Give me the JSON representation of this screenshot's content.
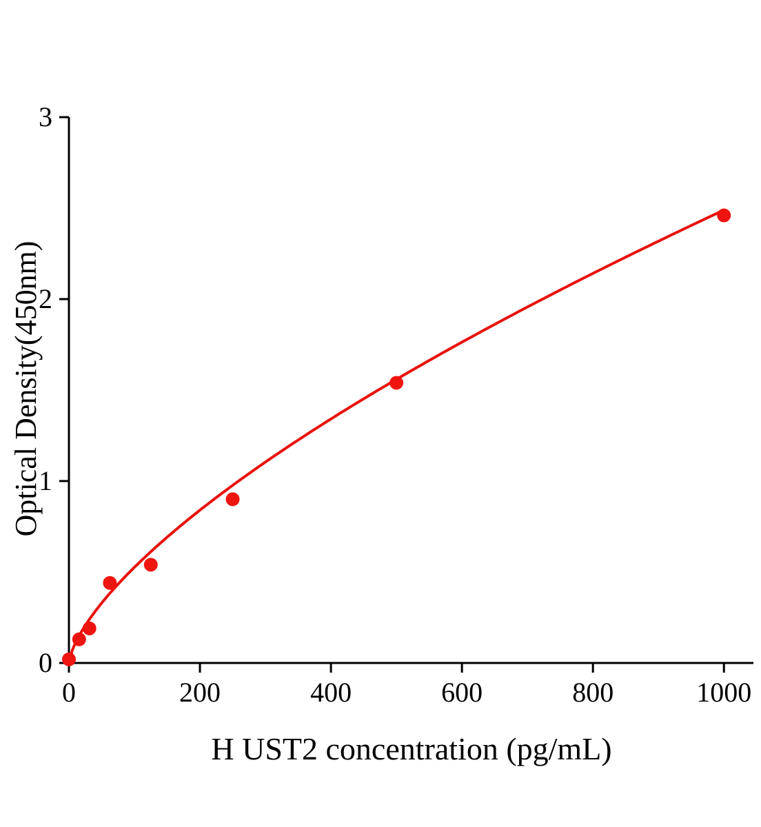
{
  "chart_data": {
    "type": "scatter",
    "title": "",
    "xlabel": "H UST2 concentration (pg/mL)",
    "ylabel": "Optical Density(450nm)",
    "x": [
      0,
      15.6,
      31.25,
      62.5,
      125,
      250,
      500,
      1000
    ],
    "y": [
      0.02,
      0.13,
      0.19,
      0.44,
      0.54,
      0.9,
      1.54,
      2.46
    ],
    "curve": {
      "type": "power",
      "a": 0.0235,
      "b": 0.675
    },
    "xlim": [
      0,
      1045
    ],
    "ylim": [
      0,
      3
    ],
    "xticks": [
      0,
      200,
      400,
      600,
      800,
      1000
    ],
    "yticks": [
      0,
      1,
      2,
      3
    ],
    "grid": false,
    "legend": "none",
    "point_color": "#ee1511",
    "line_color": "#e8120c",
    "axis_color": "#000000",
    "marker_radius": 10,
    "axis_width": 3,
    "curve_width": 4,
    "tick_length": 14,
    "tick_font_size": 40
  }
}
